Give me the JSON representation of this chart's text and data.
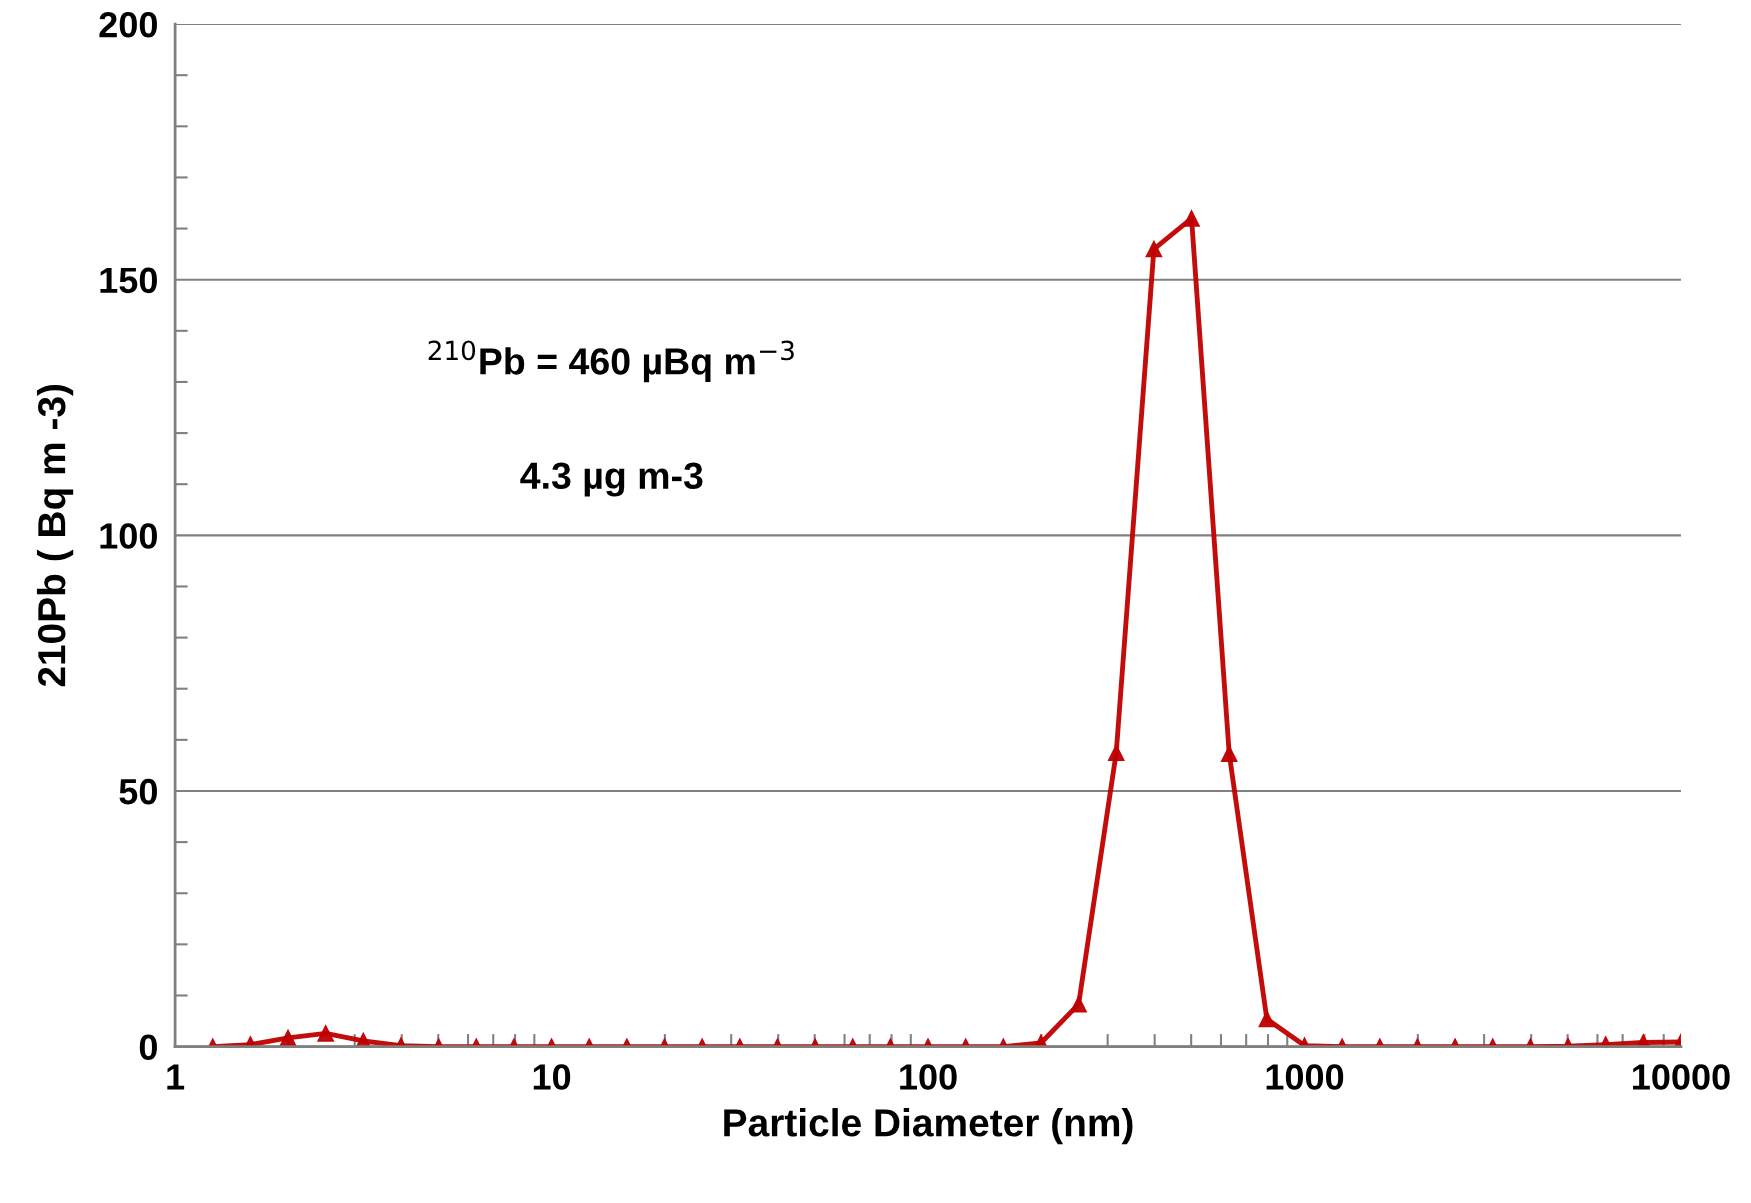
{
  "chart_data": {
    "type": "line",
    "xlabel": "Particle Diameter (nm)",
    "ylabel": "210Pb ( Bq m -3)",
    "x": [
      1.259,
      1.585,
      1.995,
      2.512,
      3.162,
      3.981,
      5.012,
      6.31,
      7.943,
      10,
      12.59,
      15.85,
      19.95,
      25.12,
      31.62,
      39.81,
      50.12,
      63.1,
      79.43,
      100,
      125.9,
      158.5,
      199.5,
      251.2,
      316.2,
      398.1,
      501.2,
      631,
      794.3,
      1000,
      1259,
      1585,
      1995,
      2512,
      3162,
      3981,
      5012,
      6310,
      7943,
      10000
    ],
    "series": [
      {
        "color": "#c00000",
        "values": [
          0,
          0.4,
          1.7,
          2.6,
          1.1,
          0.2,
          0,
          0,
          0,
          0,
          0,
          0,
          0,
          0,
          0,
          0,
          0,
          0,
          0,
          0,
          0,
          0,
          0.7,
          8.3,
          57.5,
          156,
          162,
          57.3,
          5.4,
          0.2,
          0,
          0,
          0,
          0,
          0,
          0,
          0.1,
          0.4,
          0.8,
          0.9
        ]
      }
    ],
    "log": "x",
    "xlim": [
      1,
      10000
    ],
    "xticks": [
      1,
      10,
      100,
      1000,
      10000
    ],
    "ylim": [
      0,
      200
    ],
    "yticks": [
      0,
      50,
      100,
      150,
      200
    ],
    "grid": "y",
    "marker": "triangle",
    "line_style": "solid",
    "legend": false,
    "annotations": [
      "$^{210}$Pb = 460 µBq m$^{−3}$",
      "4.3 µg m-3"
    ]
  }
}
